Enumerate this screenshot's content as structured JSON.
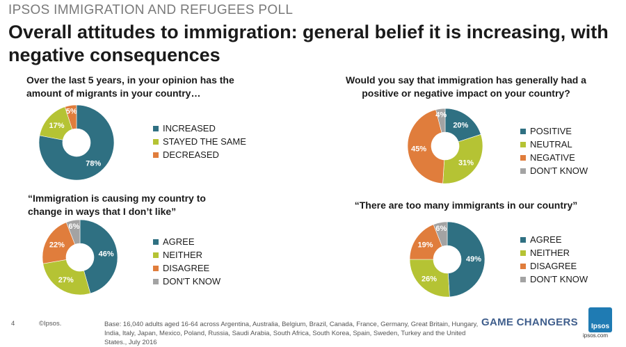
{
  "header": {
    "supertitle": "IPSOS IMMIGRATION AND REFUGEES POLL",
    "title": "Overall attitudes to immigration: general belief it is increasing, with negative consequences"
  },
  "colors": {
    "teal": "#2f7082",
    "green": "#b5c334",
    "orange": "#e07d3c",
    "grey": "#a3a3a3"
  },
  "chart_data": [
    {
      "type": "pie",
      "title": "Over the last 5 years, in your opinion has the amount of migrants in your country…",
      "donut": true,
      "slices": [
        {
          "label": "INCREASED",
          "value": 78,
          "display": "78%",
          "color": "#2f7082"
        },
        {
          "label": "STAYED THE SAME",
          "value": 17,
          "display": "17%",
          "color": "#b5c334"
        },
        {
          "label": "DECREASED",
          "value": 5,
          "display": "5%",
          "color": "#e07d3c"
        }
      ]
    },
    {
      "type": "pie",
      "title": "Would you say that immigration has generally had a positive or negative impact on your country?",
      "donut": true,
      "slices": [
        {
          "label": "POSITIVE",
          "value": 20,
          "display": "20%",
          "color": "#2f7082"
        },
        {
          "label": "NEUTRAL",
          "value": 31,
          "display": "31%",
          "color": "#b5c334"
        },
        {
          "label": "NEGATIVE",
          "value": 45,
          "display": "45%",
          "color": "#e07d3c"
        },
        {
          "label": "DON'T KNOW",
          "value": 4,
          "display": "4%",
          "color": "#a3a3a3"
        }
      ]
    },
    {
      "type": "pie",
      "title": "“Immigration is causing my country to change in ways that I don’t like”",
      "donut": true,
      "slices": [
        {
          "label": "AGREE",
          "value": 46,
          "display": "46%",
          "color": "#2f7082"
        },
        {
          "label": "NEITHER",
          "value": 27,
          "display": "27%",
          "color": "#b5c334"
        },
        {
          "label": "DISAGREE",
          "value": 22,
          "display": "22%",
          "color": "#e07d3c"
        },
        {
          "label": "DON'T KNOW",
          "value": 6,
          "display": "6%",
          "color": "#a3a3a3"
        }
      ]
    },
    {
      "type": "pie",
      "title": "“There are too many immigrants in our country”",
      "donut": true,
      "slices": [
        {
          "label": "AGREE",
          "value": 49,
          "display": "49%",
          "color": "#2f7082"
        },
        {
          "label": "NEITHER",
          "value": 26,
          "display": "26%",
          "color": "#b5c334"
        },
        {
          "label": "DISAGREE",
          "value": 19,
          "display": "19%",
          "color": "#e07d3c"
        },
        {
          "label": "DON'T KNOW",
          "value": 6,
          "display": "6%",
          "color": "#a3a3a3"
        }
      ]
    }
  ],
  "footer": {
    "page_number": "4",
    "copyright": "©Ipsos.",
    "base": "Base: 16,040 adults aged 16-64 across  Argentina, Australia, Belgium, Brazil, Canada, France, Germany, Great Britain, Hungary, India, Italy, Japan, Mexico, Poland, Russia, Saudi Arabia, South Africa, South Korea, Spain, Sweden, Turkey and the United States., July 2016",
    "tagline": "GAME CHANGERS",
    "logo_text": "Ipsos",
    "url": "ipsos.com"
  }
}
